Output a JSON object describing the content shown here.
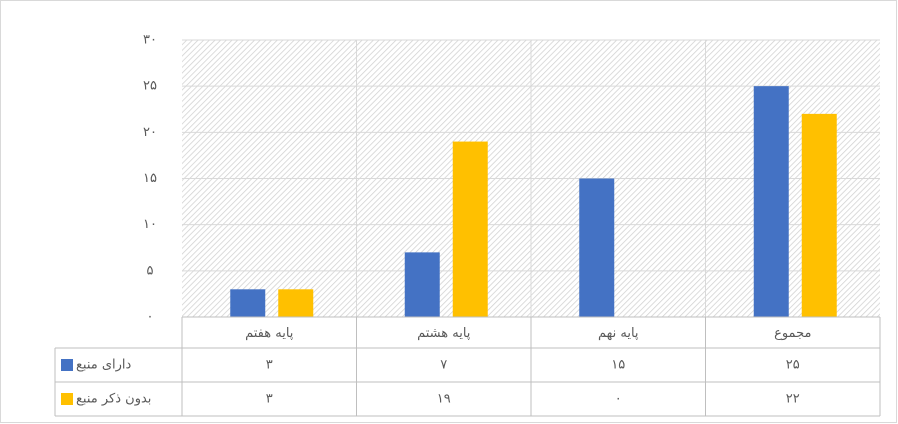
{
  "chart_data": {
    "type": "bar",
    "categories": [
      "پایه هفتم",
      "پایه هشتم",
      "پایه نهم",
      "مجموع"
    ],
    "series": [
      {
        "name": "دارای منبع",
        "color": "#4472c4",
        "values": [
          3,
          7,
          15,
          25
        ],
        "value_labels": [
          "۳",
          "۷",
          "۱۵",
          "۲۵"
        ]
      },
      {
        "name": "بدون ذکر منبع",
        "color": "#ffc000",
        "values": [
          3,
          19,
          0,
          22
        ],
        "value_labels": [
          "۳",
          "۱۹",
          "۰",
          "۲۲"
        ]
      }
    ],
    "ylim": [
      0,
      30
    ],
    "yticks": [
      {
        "value": 0,
        "label": "۰"
      },
      {
        "value": 5,
        "label": "۵"
      },
      {
        "value": 10,
        "label": "۱۰"
      },
      {
        "value": 15,
        "label": "۱۵"
      },
      {
        "value": 20,
        "label": "۲۰"
      },
      {
        "value": 25,
        "label": "۲۵"
      },
      {
        "value": 30,
        "label": "۳۰"
      }
    ],
    "grid": true,
    "data_table": true
  }
}
